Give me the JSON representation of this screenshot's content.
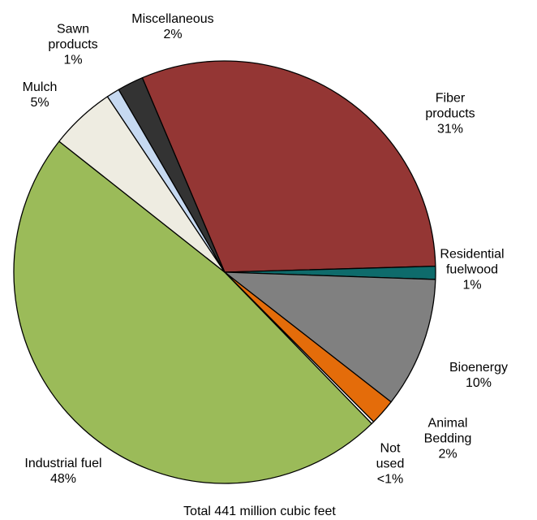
{
  "chart_data": {
    "type": "pie",
    "subtitle": "Total 441 million cubic feet",
    "categories": [
      "Fiber products",
      "Residential fuelwood",
      "Bioenergy",
      "Animal Bedding",
      "Not used",
      "Industrial fuel",
      "Mulch",
      "Sawn products",
      "Miscellaneous"
    ],
    "values": [
      31,
      1,
      10,
      2,
      0.2,
      48,
      5,
      1,
      2
    ],
    "value_labels": [
      "31%",
      "1%",
      "10%",
      "2%",
      "<1%",
      "48%",
      "5%",
      "1%",
      "2%"
    ],
    "colors": [
      "#943634",
      "#0e6b6b",
      "#808080",
      "#e46c0a",
      "#ffffff",
      "#9bbb59",
      "#eeece1",
      "#c6d9f1",
      "#333333"
    ]
  }
}
